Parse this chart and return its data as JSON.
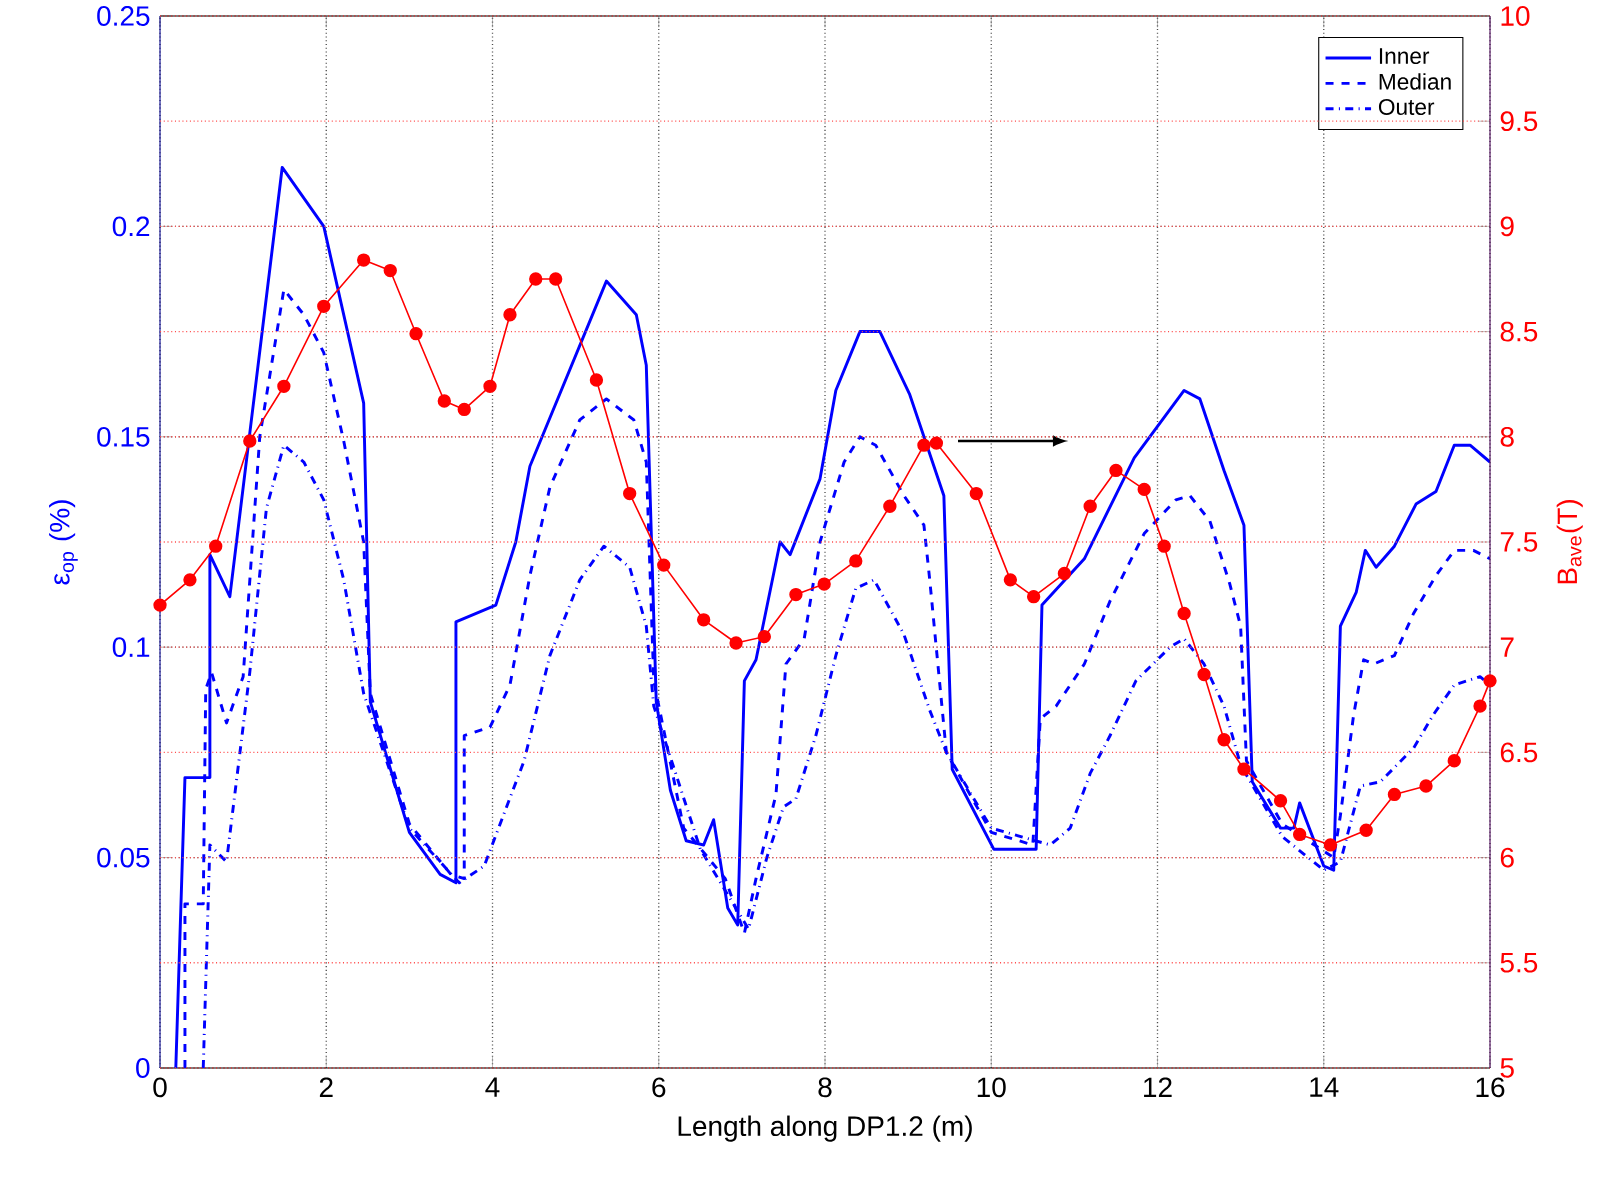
{
  "chart_data": {
    "type": "line",
    "xlabel": "Length along DP1.2 (m)",
    "ylabel": "ε$_{op}$ (%)",
    "y2label": "B$_{ave}$(T)",
    "xlim": [
      0,
      16
    ],
    "xticks": [
      0,
      2,
      4,
      6,
      8,
      10,
      12,
      14,
      16
    ],
    "ylim": [
      0,
      0.25
    ],
    "yticks": [
      0,
      0.05,
      0.1,
      0.15,
      0.2,
      0.25
    ],
    "y2lim": [
      5,
      10
    ],
    "y2ticks": [
      5,
      5.5,
      6,
      6.5,
      7,
      7.5,
      8,
      8.5,
      9,
      9.5,
      10
    ],
    "grid": true,
    "legend": "top right",
    "series": [
      {
        "name": "Inner",
        "color": "#0000ff",
        "line_style": "solid",
        "marker": "none",
        "x": [
          0.19,
          0.3,
          0.6,
          0.6,
          0.84,
          1.47,
          1.97,
          2.45,
          2.53,
          3.0,
          3.37,
          3.56,
          3.56,
          4.04,
          4.28,
          4.45,
          5.37,
          5.73,
          5.85,
          5.97,
          6.14,
          6.33,
          6.54,
          6.66,
          6.83,
          6.95,
          7.03,
          7.17,
          7.46,
          7.58,
          7.94,
          8.13,
          8.42,
          8.66,
          9.02,
          9.43,
          9.53,
          10.03,
          10.54,
          10.61,
          11.12,
          11.72,
          12.32,
          12.51,
          12.8,
          13.04,
          13.14,
          13.48,
          13.64,
          13.71,
          14.0,
          14.12,
          14.2,
          14.39,
          14.5,
          14.63,
          14.85,
          15.11,
          15.35,
          15.57,
          15.76,
          16.0
        ],
        "values": [
          0,
          0.069,
          0.069,
          0.122,
          0.112,
          0.214,
          0.2,
          0.158,
          0.087,
          0.056,
          0.046,
          0.044,
          0.106,
          0.11,
          0.125,
          0.143,
          0.187,
          0.179,
          0.167,
          0.087,
          0.066,
          0.054,
          0.053,
          0.059,
          0.038,
          0.034,
          0.092,
          0.097,
          0.125,
          0.122,
          0.14,
          0.161,
          0.175,
          0.175,
          0.16,
          0.136,
          0.071,
          0.052,
          0.052,
          0.11,
          0.121,
          0.145,
          0.161,
          0.159,
          0.142,
          0.129,
          0.068,
          0.057,
          0.057,
          0.063,
          0.048,
          0.047,
          0.105,
          0.113,
          0.123,
          0.119,
          0.124,
          0.134,
          0.137,
          0.148,
          0.148,
          0.144
        ]
      },
      {
        "name": "Median",
        "color": "#0000ff",
        "line_style": "dashed",
        "marker": "none",
        "x": [
          0.3,
          0.3,
          0.52,
          0.55,
          0.62,
          0.8,
          1.0,
          1.2,
          1.49,
          1.73,
          1.97,
          2.21,
          2.45,
          2.53,
          3.0,
          3.5,
          3.66,
          3.66,
          3.97,
          4.21,
          4.45,
          4.69,
          5.05,
          5.37,
          5.7,
          5.85,
          5.94,
          6.3,
          6.8,
          7.03,
          7.17,
          7.41,
          7.53,
          7.75,
          7.94,
          8.23,
          8.42,
          8.61,
          8.95,
          9.19,
          9.26,
          9.46,
          10.0,
          10.5,
          10.59,
          10.78,
          11.12,
          11.43,
          11.84,
          12.22,
          12.39,
          12.63,
          12.87,
          13.0,
          13.07,
          13.5,
          14.12,
          14.2,
          14.36,
          14.48,
          14.6,
          14.85,
          15.08,
          15.35,
          15.57,
          15.8,
          16.0
        ],
        "values": [
          0,
          0.039,
          0.039,
          0.09,
          0.094,
          0.082,
          0.093,
          0.15,
          0.185,
          0.179,
          0.17,
          0.149,
          0.125,
          0.089,
          0.058,
          0.046,
          0.045,
          0.079,
          0.081,
          0.091,
          0.117,
          0.138,
          0.154,
          0.159,
          0.154,
          0.144,
          0.092,
          0.057,
          0.045,
          0.032,
          0.045,
          0.065,
          0.096,
          0.102,
          0.125,
          0.144,
          0.15,
          0.148,
          0.136,
          0.129,
          0.116,
          0.075,
          0.056,
          0.053,
          0.083,
          0.086,
          0.096,
          0.111,
          0.127,
          0.135,
          0.136,
          0.13,
          0.115,
          0.105,
          0.073,
          0.058,
          0.05,
          0.06,
          0.084,
          0.097,
          0.096,
          0.098,
          0.108,
          0.117,
          0.123,
          0.123,
          0.121
        ]
      },
      {
        "name": "Outer",
        "color": "#0000ff",
        "line_style": "dashdot",
        "marker": "none",
        "x": [
          0.52,
          0.6,
          0.8,
          1.08,
          1.28,
          1.49,
          1.73,
          1.97,
          2.21,
          2.45,
          3.0,
          3.6,
          3.9,
          4.38,
          4.69,
          5.05,
          5.34,
          5.65,
          5.85,
          5.94,
          6.5,
          7.08,
          7.3,
          7.5,
          7.65,
          7.89,
          8.13,
          8.37,
          8.59,
          8.95,
          9.26,
          9.46,
          10.0,
          10.71,
          10.95,
          11.19,
          11.43,
          11.74,
          12.15,
          12.32,
          12.56,
          12.8,
          13.0,
          13.5,
          14.0,
          14.2,
          14.44,
          14.68,
          15.08,
          15.32,
          15.57,
          15.88,
          16.0
        ],
        "values": [
          0,
          0.053,
          0.049,
          0.094,
          0.133,
          0.148,
          0.144,
          0.135,
          0.116,
          0.089,
          0.057,
          0.044,
          0.048,
          0.073,
          0.098,
          0.116,
          0.124,
          0.119,
          0.105,
          0.086,
          0.052,
          0.033,
          0.05,
          0.062,
          0.064,
          0.079,
          0.098,
          0.114,
          0.116,
          0.103,
          0.085,
          0.075,
          0.057,
          0.053,
          0.057,
          0.07,
          0.079,
          0.092,
          0.1,
          0.102,
          0.096,
          0.086,
          0.072,
          0.055,
          0.047,
          0.049,
          0.067,
          0.068,
          0.076,
          0.084,
          0.091,
          0.093,
          0.091
        ]
      },
      {
        "color": "#ff0000",
        "axis": "y2",
        "line_style": "solid",
        "marker": "circle",
        "x": [
          0,
          0.36,
          0.67,
          1.08,
          1.49,
          1.97,
          2.45,
          2.77,
          3.08,
          3.42,
          3.66,
          3.97,
          4.21,
          4.52,
          4.76,
          5.25,
          5.65,
          6.06,
          6.54,
          6.93,
          7.27,
          7.65,
          7.99,
          8.37,
          8.78,
          9.19,
          9.34,
          9.82,
          10.23,
          10.51,
          10.88,
          11.19,
          11.5,
          11.84,
          12.08,
          12.32,
          12.56,
          12.8,
          13.04,
          13.48,
          13.71,
          14.08,
          14.51,
          14.85,
          15.23,
          15.57,
          15.88,
          16.0
        ],
        "values": [
          7.2,
          7.32,
          7.48,
          7.98,
          8.24,
          8.62,
          8.84,
          8.79,
          8.49,
          8.17,
          8.13,
          8.24,
          8.58,
          8.75,
          8.75,
          8.27,
          7.73,
          7.39,
          7.13,
          7.02,
          7.05,
          7.25,
          7.3,
          7.41,
          7.67,
          7.96,
          7.97,
          7.73,
          7.32,
          7.24,
          7.35,
          7.67,
          7.84,
          7.75,
          7.48,
          7.16,
          6.87,
          6.56,
          6.42,
          6.27,
          6.11,
          6.06,
          6.13,
          6.3,
          6.34,
          6.46,
          6.72,
          6.84
        ]
      }
    ]
  }
}
